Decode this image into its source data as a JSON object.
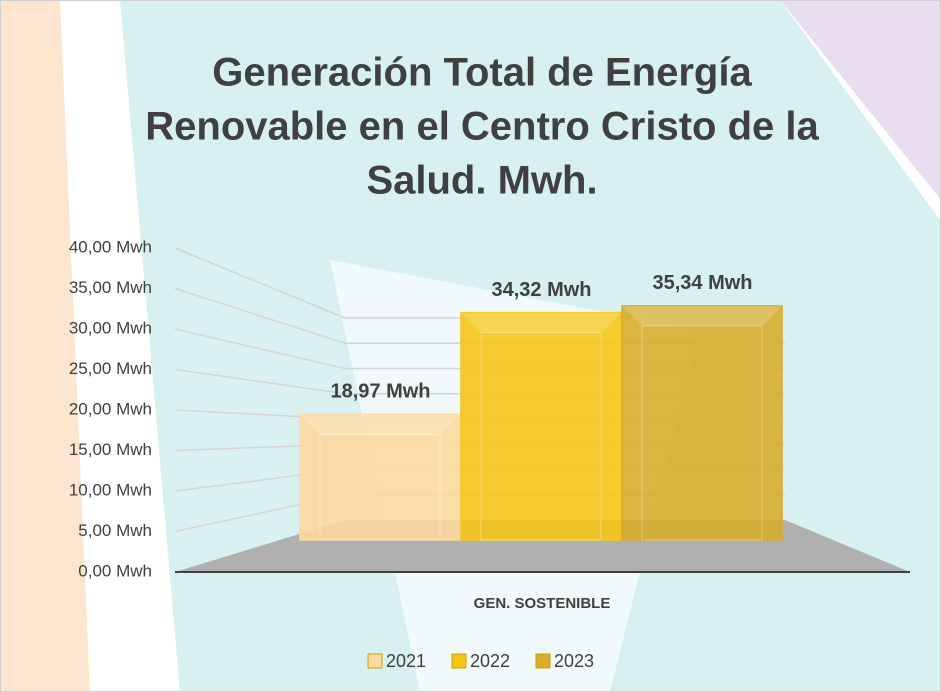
{
  "chart_data": {
    "type": "bar3d",
    "title": [
      "Generación Total de Energía",
      "Renovable en el Centro Cristo de la",
      "Salud. Mwh."
    ],
    "categories": [
      "GEN. SOSTENIBLE"
    ],
    "series": [
      {
        "name": "2021",
        "color": "#fcd9a0",
        "values": [
          18.97
        ],
        "value_labels": [
          "18,97 Mwh"
        ]
      },
      {
        "name": "2022",
        "color": "#f5c518",
        "values": [
          34.32
        ],
        "value_labels": [
          "34,32 Mwh"
        ]
      },
      {
        "name": "2023",
        "color": "#d6ad2c",
        "values": [
          35.34
        ],
        "value_labels": [
          "35,34 Mwh"
        ]
      }
    ],
    "ylim": [
      0,
      40
    ],
    "yticks": [
      {
        "value": 0,
        "label": "0,00 Mwh"
      },
      {
        "value": 5,
        "label": "5,00 Mwh"
      },
      {
        "value": 10,
        "label": "10,00 Mwh"
      },
      {
        "value": 15,
        "label": "15,00 Mwh"
      },
      {
        "value": 20,
        "label": "20,00 Mwh"
      },
      {
        "value": 25,
        "label": "25,00 Mwh"
      },
      {
        "value": 30,
        "label": "30,00 Mwh"
      },
      {
        "value": 35,
        "label": "35,00 Mwh"
      },
      {
        "value": 40,
        "label": "40,00 Mwh"
      }
    ],
    "grid": true,
    "legend": "bottom"
  }
}
